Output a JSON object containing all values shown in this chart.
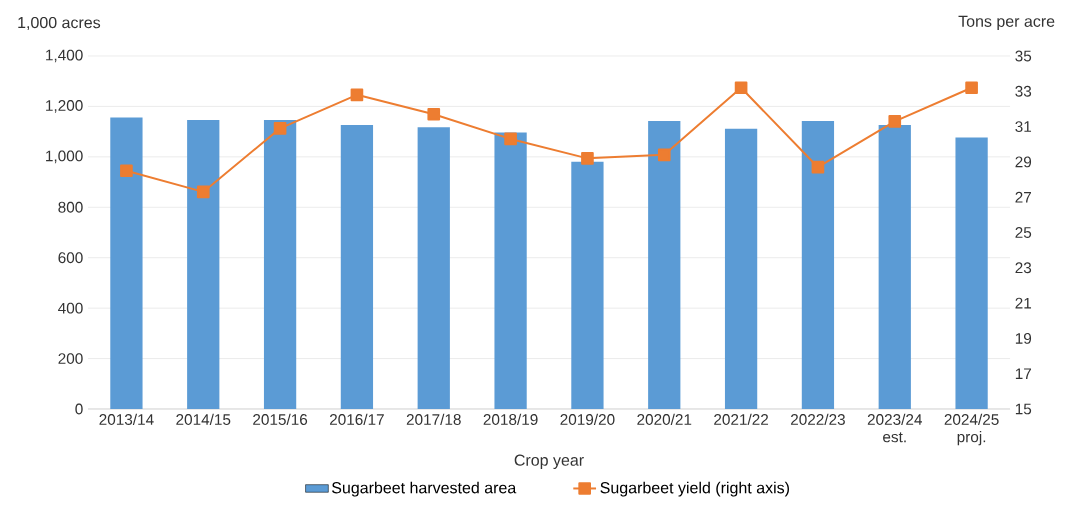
{
  "chart_data": {
    "type": "bar",
    "categories": [
      "2013/14",
      "2014/15",
      "2015/16",
      "2016/17",
      "2017/18",
      "2018/19",
      "2019/20",
      "2020/21",
      "2021/22",
      "2022/23",
      "2023/24 est.",
      "2024/25 proj."
    ],
    "series": [
      {
        "name": "Sugarbeet harvested area",
        "color": "#5b9bd5",
        "values": [
          1156,
          1146,
          1146,
          1126,
          1117,
          1097,
          981,
          1142,
          1111,
          1142,
          1126,
          1077
        ]
      },
      {
        "name": "Sugarbeet yield (right axis)",
        "type": "line",
        "axis": "y2",
        "color": "#ed7d31",
        "marker": "square",
        "values": [
          28.5,
          27.3,
          30.9,
          32.8,
          31.7,
          30.3,
          29.2,
          29.4,
          33.2,
          28.7,
          31.3,
          33.2
        ]
      }
    ],
    "xlabel": "Crop year",
    "ylabel": "1,000 acres",
    "y2label": "Tons per acre",
    "ylim": [
      0,
      1400
    ],
    "yticks": [
      0,
      200,
      400,
      600,
      800,
      {
        "value": 1000,
        "label": "1,000"
      },
      {
        "value": 1200,
        "label": "1,200"
      },
      {
        "value": 1400,
        "label": "1,400"
      }
    ],
    "y2lim": [
      15,
      35
    ],
    "y2ticks": [
      15,
      17,
      19,
      21,
      23,
      25,
      27,
      29,
      31,
      33,
      35
    ],
    "grid": "y",
    "legend": "bottom"
  }
}
